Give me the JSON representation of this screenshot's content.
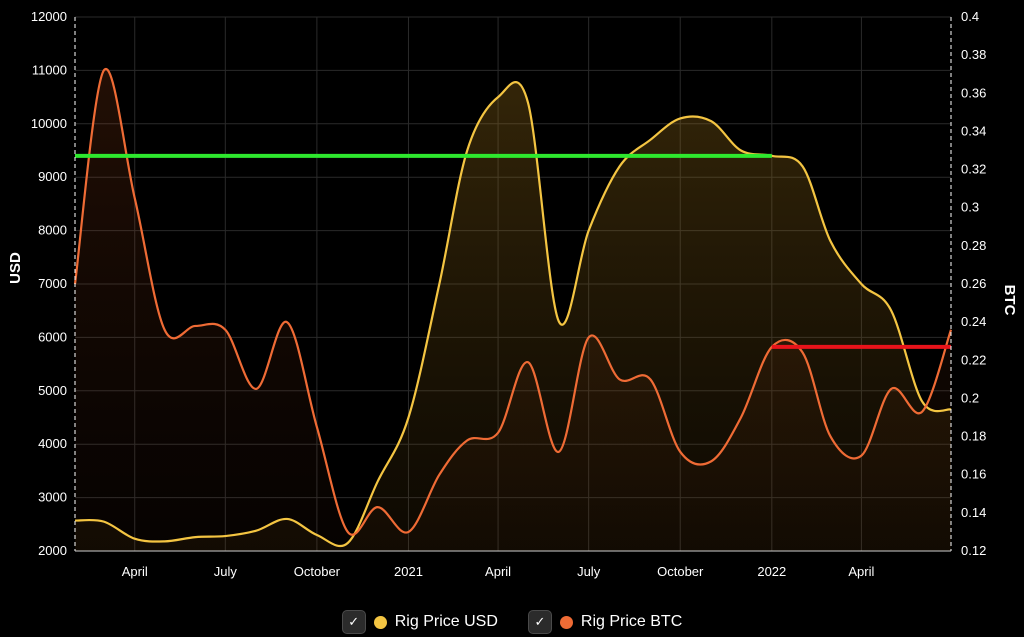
{
  "chart_data": {
    "type": "line",
    "ylabel": "USD",
    "y2label": "BTC",
    "ylim": [
      2000,
      12000
    ],
    "y2lim": [
      0.12,
      0.4
    ],
    "y_ticks": [
      "2000",
      "3000",
      "4000",
      "5000",
      "6000",
      "7000",
      "8000",
      "9000",
      "10000",
      "11000",
      "12000"
    ],
    "y2_ticks": [
      "0.12",
      "0.14",
      "0.16",
      "0.18",
      "0.2",
      "0.22",
      "0.24",
      "0.26",
      "0.28",
      "0.3",
      "0.32",
      "0.34",
      "0.36",
      "0.38",
      "0.4"
    ],
    "x_ticks": [
      "April",
      "July",
      "October",
      "2021",
      "April",
      "July",
      "October",
      "2022",
      "April"
    ],
    "x_tick_dates": [
      "2020-04-01",
      "2020-07-01",
      "2020-10-01",
      "2021-01-01",
      "2021-04-01",
      "2021-07-01",
      "2021-10-01",
      "2022-01-01",
      "2022-04-01"
    ],
    "x_range": [
      "2020-02-01",
      "2022-06-30"
    ],
    "grid": true,
    "legend_position": "bottom",
    "series": [
      {
        "name": "Rig Price USD",
        "axis": "left",
        "color": "#f4c542",
        "points": [
          [
            "2020-02-01",
            2570
          ],
          [
            "2020-03-01",
            2550
          ],
          [
            "2020-04-01",
            2230
          ],
          [
            "2020-05-01",
            2180
          ],
          [
            "2020-06-01",
            2260
          ],
          [
            "2020-07-01",
            2280
          ],
          [
            "2020-08-01",
            2380
          ],
          [
            "2020-09-01",
            2600
          ],
          [
            "2020-10-01",
            2300
          ],
          [
            "2020-11-01",
            2150
          ],
          [
            "2020-12-01",
            3300
          ],
          [
            "2021-01-01",
            4500
          ],
          [
            "2021-02-01",
            7000
          ],
          [
            "2021-03-01",
            9500
          ],
          [
            "2021-04-01",
            10500
          ],
          [
            "2021-05-01",
            10400
          ],
          [
            "2021-06-01",
            6300
          ],
          [
            "2021-07-01",
            8000
          ],
          [
            "2021-08-01",
            9200
          ],
          [
            "2021-09-01",
            9700
          ],
          [
            "2021-10-01",
            10100
          ],
          [
            "2021-11-01",
            10050
          ],
          [
            "2021-12-01",
            9500
          ],
          [
            "2022-01-01",
            9400
          ],
          [
            "2022-02-01",
            9200
          ],
          [
            "2022-03-01",
            7800
          ],
          [
            "2022-04-01",
            7000
          ],
          [
            "2022-05-01",
            6500
          ],
          [
            "2022-06-01",
            4800
          ],
          [
            "2022-06-30",
            4650
          ]
        ]
      },
      {
        "name": "Rig Price BTC",
        "axis": "right",
        "color": "#ef6b35",
        "points": [
          [
            "2020-02-01",
            0.26
          ],
          [
            "2020-03-01",
            0.372
          ],
          [
            "2020-04-01",
            0.305
          ],
          [
            "2020-05-01",
            0.236
          ],
          [
            "2020-06-01",
            0.238
          ],
          [
            "2020-07-01",
            0.236
          ],
          [
            "2020-08-01",
            0.205
          ],
          [
            "2020-09-01",
            0.24
          ],
          [
            "2020-10-01",
            0.185
          ],
          [
            "2020-11-01",
            0.13
          ],
          [
            "2020-12-01",
            0.143
          ],
          [
            "2021-01-01",
            0.13
          ],
          [
            "2021-02-01",
            0.16
          ],
          [
            "2021-03-01",
            0.178
          ],
          [
            "2021-04-01",
            0.182
          ],
          [
            "2021-05-01",
            0.219
          ],
          [
            "2021-06-01",
            0.172
          ],
          [
            "2021-07-01",
            0.232
          ],
          [
            "2021-08-01",
            0.21
          ],
          [
            "2021-09-01",
            0.21
          ],
          [
            "2021-10-01",
            0.172
          ],
          [
            "2021-11-01",
            0.167
          ],
          [
            "2021-12-01",
            0.19
          ],
          [
            "2022-01-01",
            0.227
          ],
          [
            "2022-02-01",
            0.224
          ],
          [
            "2022-03-01",
            0.18
          ],
          [
            "2022-04-01",
            0.17
          ],
          [
            "2022-05-01",
            0.205
          ],
          [
            "2022-06-01",
            0.193
          ],
          [
            "2022-06-30",
            0.236
          ]
        ]
      }
    ],
    "reference_lines": [
      {
        "axis": "left",
        "value": 9400,
        "from": "2020-02-01",
        "to": "2022-01-01",
        "color": "#2ee82e"
      },
      {
        "axis": "right",
        "value": 0.227,
        "from": "2022-01-01",
        "to": "2022-06-30",
        "color": "#e8131a"
      }
    ]
  },
  "legend": {
    "items": [
      {
        "label": "Rig Price USD",
        "color": "#f4c542",
        "check": "✓"
      },
      {
        "label": "Rig Price BTC",
        "color": "#ef6b35",
        "check": "✓"
      }
    ]
  }
}
